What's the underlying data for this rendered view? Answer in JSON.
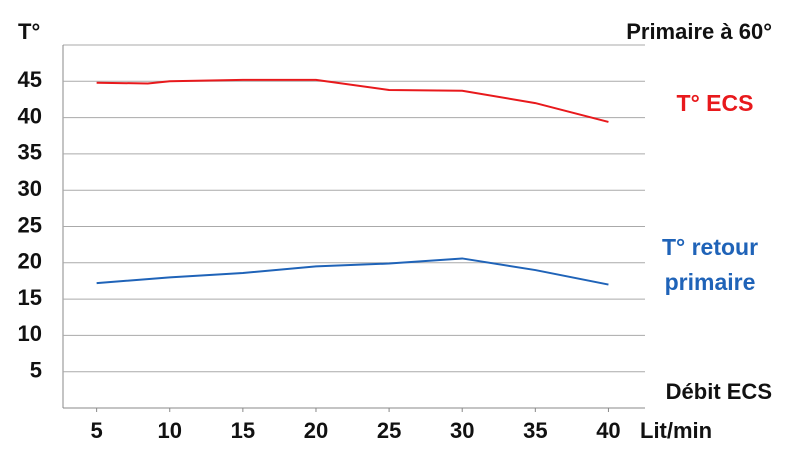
{
  "chart_data": {
    "type": "line",
    "title": "Primaire à 60°",
    "y_label": "T°",
    "x_label": "Débit ECS",
    "x_unit_label": "Lit/min",
    "xlim": [
      2.7,
      42.5
    ],
    "xticks": [
      5,
      10,
      15,
      20,
      25,
      30,
      35,
      40
    ],
    "ylim": [
      0,
      50
    ],
    "yticks": [
      5,
      10,
      15,
      20,
      25,
      30,
      35,
      40,
      45
    ],
    "grid": true,
    "series": [
      {
        "name": "T° ECS",
        "color": "#e8191c",
        "x": [
          5,
          8.5,
          10,
          15,
          20,
          25,
          30,
          35,
          40
        ],
        "values": [
          44.8,
          44.7,
          45,
          45.2,
          45.2,
          43.8,
          43.7,
          42,
          39.4
        ]
      },
      {
        "name": "T° retour primaire",
        "color": "#1f63b8",
        "x": [
          5,
          10,
          15,
          20,
          25,
          30,
          35,
          40
        ],
        "values": [
          17.2,
          18,
          18.6,
          19.5,
          19.9,
          20.6,
          19,
          17
        ]
      }
    ]
  }
}
